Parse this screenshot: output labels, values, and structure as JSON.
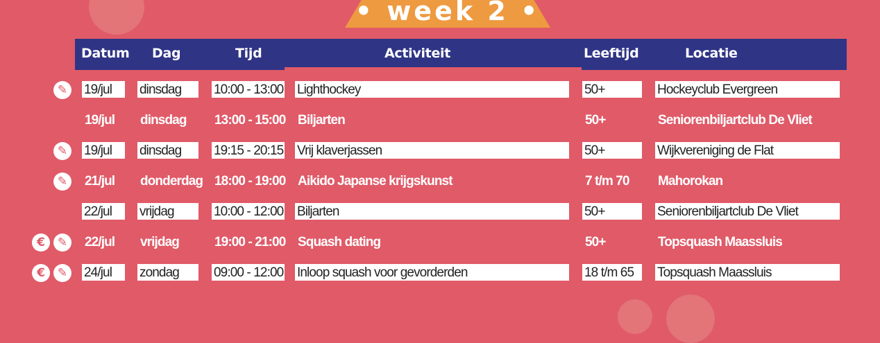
{
  "banner": {
    "title": "• week 2 •"
  },
  "headers": {
    "datum": "Datum",
    "dag": "Dag",
    "tijd": "Tijd",
    "activiteit": "Activiteit",
    "leeftijd": "Leeftijd",
    "locatie": "Locatie"
  },
  "rows": [
    {
      "datum": "19/jul",
      "dag": "dinsdag",
      "tijd": "10:00 - 13:00",
      "activiteit": "Lighthockey",
      "leeftijd": "50+",
      "locatie": "Hockeyclub Evergreen",
      "icons": [
        "register-icon"
      ]
    },
    {
      "datum": "19/jul",
      "dag": "dinsdag",
      "tijd": "13:00 - 15:00",
      "activiteit": "Biljarten",
      "leeftijd": "50+",
      "locatie": "Seniorenbiljartclub De Vliet",
      "icons": []
    },
    {
      "datum": "19/jul",
      "dag": "dinsdag",
      "tijd": "19:15 - 20:15",
      "activiteit": "Vrij klaverjassen",
      "leeftijd": "50+",
      "locatie": "Wijkvereniging de Flat",
      "icons": [
        "register-icon"
      ]
    },
    {
      "datum": "21/jul",
      "dag": "donderdag",
      "tijd": "18:00 - 19:00",
      "activiteit": "Aikido Japanse krijgskunst",
      "leeftijd": "7 t/m 70",
      "locatie": "Mahorokan",
      "icons": [
        "register-icon"
      ]
    },
    {
      "datum": "22/jul",
      "dag": "vrijdag",
      "tijd": "10:00 - 12:00",
      "activiteit": "Biljarten",
      "leeftijd": "50+",
      "locatie": "Seniorenbiljartclub De Vliet",
      "icons": []
    },
    {
      "datum": "22/jul",
      "dag": "vrijdag",
      "tijd": "19:00 - 21:00",
      "activiteit": "Squash dating",
      "leeftijd": "50+",
      "locatie": "Topsquash Maassluis",
      "icons": [
        "euro-icon",
        "register-icon"
      ]
    },
    {
      "datum": "24/jul",
      "dag": "zondag",
      "tijd": "09:00 - 12:00",
      "activiteit": "Inloop squash voor gevorderden",
      "leeftijd": "18 t/m 65",
      "locatie": "Topsquash Maassluis",
      "icons": [
        "euro-icon",
        "register-icon"
      ]
    }
  ],
  "colors": {
    "background": "#E05A68",
    "header": "#2F3485",
    "banner": "#EE9A40"
  }
}
